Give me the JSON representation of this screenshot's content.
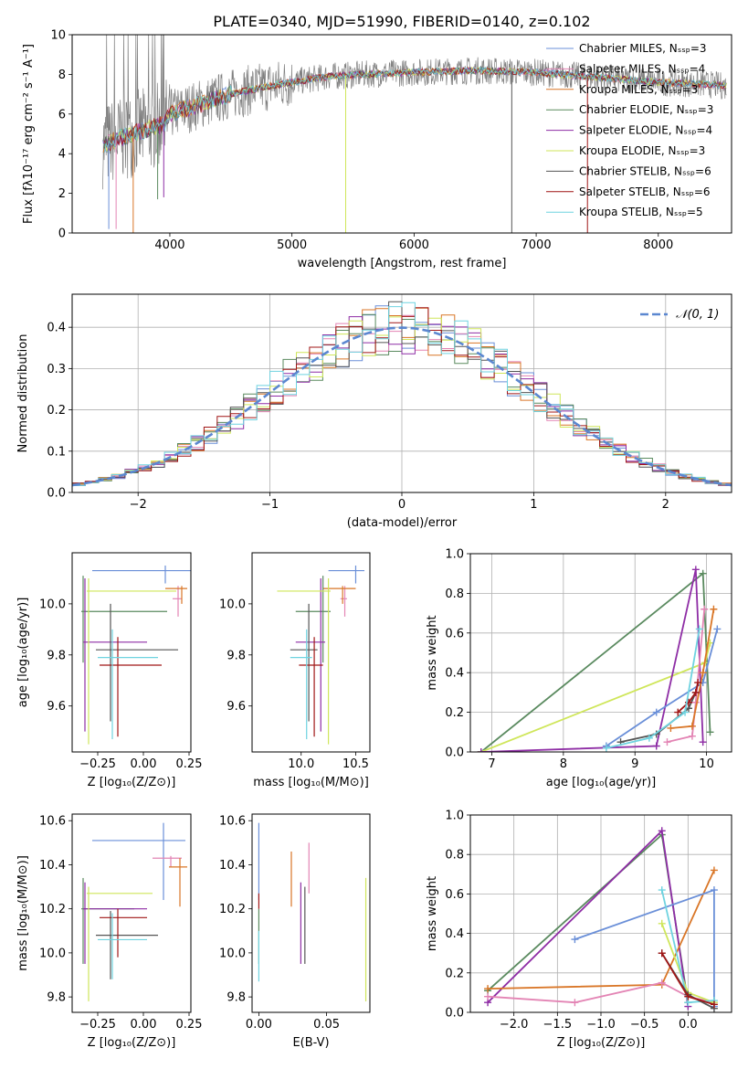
{
  "figure": {
    "title": "PLATE=0340, MJD=51990, FIBERID=0140, z=0.102"
  },
  "colors": {
    "chabrier_miles": "#6a8fd8",
    "salpeter_miles": "#e384b4",
    "kroupa_miles": "#d97627",
    "chabrier_elodie": "#5a8a5f",
    "salpeter_elodie": "#8e2da5",
    "kroupa_elodie": "#cfe65a",
    "chabrier_stelib": "#555555",
    "salpeter_stelib": "#a01616",
    "kroupa_stelib": "#6fd3e0",
    "normal": "#5b87d0",
    "spectrum": "#808080"
  },
  "chart_data": [
    {
      "id": "spectrum",
      "type": "line",
      "xlabel": "wavelength [Angstrom, rest frame]",
      "ylabel": "Flux [fλ10⁻¹⁷ erg cm⁻² s⁻¹ A⁻¹]",
      "xlim": [
        3200,
        8600
      ],
      "ylim": [
        0,
        10
      ],
      "xticks": [
        4000,
        5000,
        6000,
        7000,
        8000
      ],
      "yticks": [
        0,
        2,
        4,
        6,
        8,
        10
      ],
      "legend_position": "right",
      "legend": [
        {
          "label": "Chabrier MILES, Nₛₛₚ=3",
          "color": "chabrier_miles"
        },
        {
          "label": "Salpeter MILES, Nₛₛₚ=4",
          "color": "salpeter_miles"
        },
        {
          "label": "Kroupa MILES, Nₛₛₚ=3",
          "color": "kroupa_miles"
        },
        {
          "label": "Chabrier ELODIE, Nₛₛₚ=3",
          "color": "chabrier_elodie"
        },
        {
          "label": "Salpeter ELODIE, Nₛₛₚ=4",
          "color": "salpeter_elodie"
        },
        {
          "label": "Kroupa ELODIE, Nₛₛₚ=3",
          "color": "kroupa_elodie"
        },
        {
          "label": "Chabrier STELIB, Nₛₛₚ=6",
          "color": "chabrier_stelib"
        },
        {
          "label": "Salpeter STELIB, Nₛₛₚ=6",
          "color": "salpeter_stelib"
        },
        {
          "label": "Kroupa STELIB, Nₛₛₚ=5",
          "color": "kroupa_stelib"
        }
      ],
      "continuum": [
        [
          3450,
          4.4
        ],
        [
          3600,
          4.8
        ],
        [
          3800,
          5.2
        ],
        [
          3950,
          5.5
        ],
        [
          4000,
          6.0
        ],
        [
          4200,
          6.4
        ],
        [
          4500,
          7.0
        ],
        [
          4800,
          7.4
        ],
        [
          5000,
          7.6
        ],
        [
          5300,
          7.9
        ],
        [
          5600,
          8.0
        ],
        [
          6000,
          8.1
        ],
        [
          6500,
          8.2
        ],
        [
          7000,
          8.1
        ],
        [
          7400,
          7.9
        ],
        [
          7600,
          7.8
        ],
        [
          8000,
          7.6
        ],
        [
          8400,
          7.5
        ],
        [
          8560,
          7.4
        ]
      ],
      "spikes": [
        [
          3500,
          0.2
        ],
        [
          3560,
          0.2
        ],
        [
          3700,
          0.0
        ],
        [
          3900,
          1.7
        ],
        [
          3950,
          1.8
        ],
        [
          5440,
          0.0
        ],
        [
          6800,
          0.0
        ],
        [
          7420,
          0.0
        ]
      ]
    },
    {
      "id": "residuals",
      "type": "step-histogram",
      "xlabel": "(data-model)/error",
      "ylabel": "Normed distribution",
      "xlim": [
        -2.5,
        2.5
      ],
      "ylim": [
        0,
        0.48
      ],
      "xticks": [
        -2,
        -1,
        0,
        1,
        2
      ],
      "yticks": [
        0.0,
        0.1,
        0.2,
        0.3,
        0.4
      ],
      "grid": true,
      "legend_position": "top-right",
      "normal_label": "𝒩(0, 1)"
    },
    {
      "id": "age_vs_Z",
      "type": "errorbar",
      "xlabel": "Z [log₁₀(Z/Z⊙)]",
      "ylabel": "age  [log₁₀(age/yr)]",
      "xlim": [
        -0.39,
        0.26
      ],
      "ylim": [
        9.42,
        10.2
      ],
      "xticks": [
        -0.25,
        0.0,
        0.25
      ],
      "yticks": [
        9.6,
        9.8,
        10.0
      ],
      "points": [
        {
          "c": "chabrier_miles",
          "x": 0.12,
          "y": 10.13,
          "ex": [
            -0.28,
            0.27
          ],
          "ey": [
            10.08,
            10.15
          ]
        },
        {
          "c": "salpeter_miles",
          "x": 0.19,
          "y": 10.02,
          "ex": [
            0.16,
            0.21
          ],
          "ey": [
            9.95,
            10.07
          ]
        },
        {
          "c": "kroupa_miles",
          "x": 0.21,
          "y": 10.06,
          "ex": [
            0.12,
            0.24
          ],
          "ey": [
            10.0,
            10.07
          ]
        },
        {
          "c": "chabrier_elodie",
          "x": -0.33,
          "y": 9.97,
          "ex": [
            -0.34,
            0.13
          ],
          "ey": [
            9.77,
            10.11
          ]
        },
        {
          "c": "salpeter_elodie",
          "x": -0.32,
          "y": 9.85,
          "ex": [
            -0.33,
            0.02
          ],
          "ey": [
            9.5,
            10.1
          ]
        },
        {
          "c": "kroupa_elodie",
          "x": -0.3,
          "y": 10.05,
          "ex": [
            -0.31,
            0.18
          ],
          "ey": [
            9.45,
            10.1
          ]
        },
        {
          "c": "chabrier_stelib",
          "x": -0.18,
          "y": 9.82,
          "ex": [
            -0.26,
            0.19
          ],
          "ey": [
            9.54,
            10.0
          ]
        },
        {
          "c": "salpeter_stelib",
          "x": -0.14,
          "y": 9.76,
          "ex": [
            -0.24,
            0.1
          ],
          "ey": [
            9.48,
            9.87
          ]
        },
        {
          "c": "kroupa_stelib",
          "x": -0.17,
          "y": 9.79,
          "ex": [
            -0.25,
            0.08
          ],
          "ey": [
            9.47,
            9.9
          ]
        }
      ]
    },
    {
      "id": "age_vs_mass",
      "type": "errorbar",
      "xlabel": "mass [log₁₀(M/M⊙)]",
      "xlim": [
        9.55,
        10.63
      ],
      "ylim": [
        9.42,
        10.2
      ],
      "xticks": [
        10.0,
        10.5
      ],
      "yticks": [
        9.6,
        9.8,
        10.0
      ],
      "points": [
        {
          "c": "chabrier_miles",
          "x": 10.5,
          "y": 10.13,
          "ex": [
            10.25,
            10.58
          ],
          "ey": [
            10.08,
            10.15
          ]
        },
        {
          "c": "salpeter_miles",
          "x": 10.4,
          "y": 10.02,
          "ex": [
            10.36,
            10.42
          ],
          "ey": [
            9.95,
            10.07
          ]
        },
        {
          "c": "kroupa_miles",
          "x": 10.38,
          "y": 10.06,
          "ex": [
            10.2,
            10.5
          ],
          "ey": [
            10.0,
            10.07
          ]
        },
        {
          "c": "chabrier_elodie",
          "x": 10.2,
          "y": 9.97,
          "ex": [
            9.95,
            10.27
          ],
          "ey": [
            9.77,
            10.11
          ]
        },
        {
          "c": "salpeter_elodie",
          "x": 10.18,
          "y": 9.85,
          "ex": [
            9.95,
            10.22
          ],
          "ey": [
            9.5,
            10.1
          ]
        },
        {
          "c": "kroupa_elodie",
          "x": 10.25,
          "y": 10.05,
          "ex": [
            9.78,
            10.27
          ],
          "ey": [
            9.45,
            10.1
          ]
        },
        {
          "c": "chabrier_stelib",
          "x": 10.07,
          "y": 9.82,
          "ex": [
            9.9,
            10.15
          ],
          "ey": [
            9.54,
            10.0
          ]
        },
        {
          "c": "salpeter_stelib",
          "x": 10.12,
          "y": 9.76,
          "ex": [
            9.98,
            10.2
          ],
          "ey": [
            9.48,
            9.87
          ]
        },
        {
          "c": "kroupa_stelib",
          "x": 10.05,
          "y": 9.79,
          "ex": [
            9.9,
            10.1
          ],
          "ey": [
            9.47,
            9.9
          ]
        }
      ]
    },
    {
      "id": "weight_vs_age",
      "type": "line",
      "xlabel": "age  [log₁₀(age/yr)]",
      "ylabel": "mass weight",
      "xlim": [
        6.7,
        10.35
      ],
      "ylim": [
        0,
        1
      ],
      "xticks": [
        7,
        8,
        9,
        10
      ],
      "yticks": [
        0.0,
        0.2,
        0.4,
        0.6,
        0.8,
        1.0
      ],
      "grid": true,
      "series": [
        {
          "c": "chabrier_elodie",
          "pts": [
            [
              6.85,
              0.0
            ],
            [
              9.95,
              0.9
            ],
            [
              10.05,
              0.1
            ]
          ]
        },
        {
          "c": "kroupa_elodie",
          "pts": [
            [
              6.85,
              0.0
            ],
            [
              9.98,
              0.45
            ],
            [
              10.05,
              0.55
            ]
          ]
        },
        {
          "c": "salpeter_elodie",
          "pts": [
            [
              6.85,
              0.0
            ],
            [
              9.3,
              0.03
            ],
            [
              9.85,
              0.92
            ],
            [
              9.95,
              0.05
            ]
          ]
        },
        {
          "c": "chabrier_miles",
          "pts": [
            [
              8.6,
              0.03
            ],
            [
              9.3,
              0.2
            ],
            [
              9.95,
              0.35
            ],
            [
              10.15,
              0.62
            ]
          ]
        },
        {
          "c": "salpeter_miles",
          "pts": [
            [
              9.45,
              0.05
            ],
            [
              9.8,
              0.08
            ],
            [
              9.85,
              0.25
            ],
            [
              9.97,
              0.72
            ]
          ]
        },
        {
          "c": "kroupa_miles",
          "pts": [
            [
              9.5,
              0.12
            ],
            [
              9.8,
              0.13
            ],
            [
              9.95,
              0.4
            ],
            [
              10.1,
              0.72
            ]
          ]
        },
        {
          "c": "chabrier_stelib",
          "pts": [
            [
              8.8,
              0.05
            ],
            [
              9.3,
              0.09
            ],
            [
              9.75,
              0.22
            ],
            [
              9.85,
              0.3
            ]
          ]
        },
        {
          "c": "salpeter_stelib",
          "pts": [
            [
              9.6,
              0.2
            ],
            [
              9.75,
              0.25
            ],
            [
              9.85,
              0.3
            ],
            [
              9.88,
              0.35
            ]
          ]
        },
        {
          "c": "kroupa_stelib",
          "pts": [
            [
              8.6,
              0.02
            ],
            [
              9.2,
              0.07
            ],
            [
              9.7,
              0.2
            ],
            [
              9.9,
              0.62
            ]
          ]
        }
      ]
    },
    {
      "id": "mass_vs_Z",
      "type": "errorbar",
      "xlabel": "Z [log₁₀(Z/Z⊙)]",
      "ylabel": "mass [log₁₀(M/M⊙)]",
      "xlim": [
        -0.39,
        0.26
      ],
      "ylim": [
        9.73,
        10.63
      ],
      "xticks": [
        -0.25,
        0.0,
        0.25
      ],
      "yticks": [
        9.8,
        10.0,
        10.2,
        10.4,
        10.6
      ],
      "points": [
        {
          "c": "chabrier_miles",
          "x": 0.11,
          "y": 10.51,
          "ex": [
            -0.28,
            0.23
          ],
          "ey": [
            10.24,
            10.59
          ]
        },
        {
          "c": "salpeter_miles",
          "x": 0.15,
          "y": 10.43,
          "ex": [
            0.05,
            0.21
          ],
          "ey": [
            10.39,
            10.44
          ]
        },
        {
          "c": "kroupa_miles",
          "x": 0.2,
          "y": 10.39,
          "ex": [
            0.14,
            0.24
          ],
          "ey": [
            10.21,
            10.43
          ]
        },
        {
          "c": "chabrier_elodie",
          "x": -0.33,
          "y": 10.2,
          "ex": [
            -0.34,
            -0.05
          ],
          "ey": [
            9.95,
            10.34
          ]
        },
        {
          "c": "salpeter_elodie",
          "x": -0.32,
          "y": 10.2,
          "ex": [
            -0.33,
            0.02
          ],
          "ey": [
            9.95,
            10.32
          ]
        },
        {
          "c": "kroupa_elodie",
          "x": -0.3,
          "y": 10.27,
          "ex": [
            -0.31,
            0.05
          ],
          "ey": [
            9.78,
            10.3
          ]
        },
        {
          "c": "chabrier_stelib",
          "x": -0.18,
          "y": 10.08,
          "ex": [
            -0.26,
            0.08
          ],
          "ey": [
            9.88,
            10.19
          ]
        },
        {
          "c": "salpeter_stelib",
          "x": -0.14,
          "y": 10.16,
          "ex": [
            -0.24,
            0.02
          ],
          "ey": [
            9.98,
            10.2
          ]
        },
        {
          "c": "kroupa_stelib",
          "x": -0.17,
          "y": 10.06,
          "ex": [
            -0.25,
            0.02
          ],
          "ey": [
            9.88,
            10.18
          ]
        }
      ]
    },
    {
      "id": "mass_vs_ebv",
      "type": "errorbar",
      "xlabel": "E(B-V)",
      "xlim": [
        -0.005,
        0.082
      ],
      "ylim": [
        9.73,
        10.63
      ],
      "xticks": [
        0.0,
        0.05
      ],
      "yticks": [
        9.8,
        10.0,
        10.2,
        10.4,
        10.6
      ],
      "points": [
        {
          "c": "chabrier_miles",
          "x": 0.0,
          "ey": [
            10.24,
            10.59
          ]
        },
        {
          "c": "salpeter_miles",
          "x": 0.037,
          "ey": [
            10.27,
            10.5
          ]
        },
        {
          "c": "kroupa_miles",
          "x": 0.024,
          "ey": [
            10.21,
            10.46
          ]
        },
        {
          "c": "chabrier_elodie",
          "x": 0.0,
          "ey": [
            9.95,
            10.2
          ]
        },
        {
          "c": "salpeter_elodie",
          "x": 0.031,
          "ey": [
            9.95,
            10.32
          ]
        },
        {
          "c": "kroupa_elodie",
          "x": 0.079,
          "ey": [
            9.78,
            10.34
          ]
        },
        {
          "c": "chabrier_stelib",
          "x": 0.034,
          "ey": [
            9.95,
            10.3
          ]
        },
        {
          "c": "salpeter_stelib",
          "x": 0.0,
          "ey": [
            10.2,
            10.27
          ]
        },
        {
          "c": "kroupa_stelib",
          "x": 0.0,
          "ey": [
            9.87,
            10.1
          ]
        }
      ]
    },
    {
      "id": "weight_vs_Z",
      "type": "line",
      "xlabel": "Z [log₁₀(Z/Z⊙)]",
      "ylabel": "mass weight",
      "xlim": [
        -2.5,
        0.5
      ],
      "ylim": [
        0,
        1
      ],
      "xticks": [
        -2.0,
        -1.5,
        -1.0,
        -0.5,
        0.0
      ],
      "yticks": [
        0.0,
        0.2,
        0.4,
        0.6,
        0.8,
        1.0
      ],
      "grid": true,
      "series": [
        {
          "c": "chabrier_elodie",
          "pts": [
            [
              -2.3,
              0.11
            ],
            [
              -0.3,
              0.9
            ],
            [
              0.0,
              0.05
            ]
          ]
        },
        {
          "c": "salpeter_elodie",
          "pts": [
            [
              -2.3,
              0.05
            ],
            [
              -0.3,
              0.92
            ],
            [
              0.0,
              0.03
            ]
          ]
        },
        {
          "c": "kroupa_miles",
          "pts": [
            [
              -2.3,
              0.12
            ],
            [
              -0.3,
              0.14
            ],
            [
              0.3,
              0.72
            ]
          ]
        },
        {
          "c": "salpeter_miles",
          "pts": [
            [
              -2.3,
              0.08
            ],
            [
              -1.3,
              0.05
            ],
            [
              -0.3,
              0.15
            ],
            [
              0.0,
              0.08
            ],
            [
              0.3,
              0.05
            ]
          ]
        },
        {
          "c": "chabrier_miles",
          "pts": [
            [
              -1.3,
              0.37
            ],
            [
              0.3,
              0.62
            ],
            [
              0.3,
              0.03
            ]
          ]
        },
        {
          "c": "kroupa_elodie",
          "pts": [
            [
              -0.3,
              0.45
            ],
            [
              0.0,
              0.1
            ],
            [
              0.3,
              0.05
            ]
          ]
        },
        {
          "c": "kroupa_stelib",
          "pts": [
            [
              -0.3,
              0.62
            ],
            [
              0.0,
              0.05
            ],
            [
              0.3,
              0.06
            ]
          ]
        },
        {
          "c": "chabrier_stelib",
          "pts": [
            [
              -0.3,
              0.3
            ],
            [
              0.0,
              0.09
            ],
            [
              0.3,
              0.02
            ]
          ]
        },
        {
          "c": "salpeter_stelib",
          "pts": [
            [
              -0.3,
              0.3
            ],
            [
              0.0,
              0.08
            ],
            [
              0.3,
              0.04
            ]
          ]
        }
      ]
    }
  ]
}
